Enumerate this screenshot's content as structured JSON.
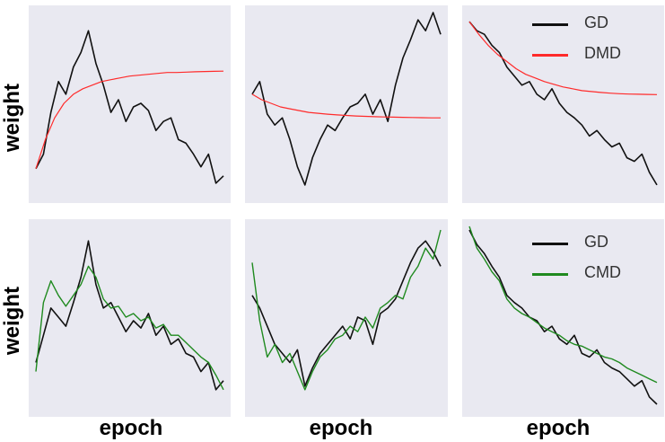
{
  "axis_labels": {
    "y": "weight",
    "x": "epoch"
  },
  "colors": {
    "GD": "#111111",
    "DMD": "#ff2b2b",
    "CMD": "#1f8a1f",
    "panel_bg": "#e9e9f1"
  },
  "legends": {
    "top": [
      {
        "label": "GD",
        "color": "#111111"
      },
      {
        "label": "DMD",
        "color": "#ff2b2b"
      }
    ],
    "bottom": [
      {
        "label": "GD",
        "color": "#111111"
      },
      {
        "label": "CMD",
        "color": "#1f8a1f"
      }
    ]
  },
  "chart_data": [
    {
      "type": "line",
      "panel": "top-left",
      "xlabel": "",
      "ylabel": "weight",
      "xlim": [
        0,
        100
      ],
      "ylim": [
        0,
        100
      ],
      "grid": false,
      "legend": "none",
      "series": [
        {
          "name": "GD",
          "color": "#111111",
          "width": 1.6,
          "x": [
            0,
            4,
            8,
            12,
            16,
            20,
            24,
            28,
            32,
            36,
            40,
            44,
            48,
            52,
            56,
            60,
            64,
            68,
            72,
            76,
            80,
            84,
            88,
            92,
            96,
            100
          ],
          "y": [
            14,
            22,
            45,
            62,
            55,
            70,
            78,
            90,
            72,
            60,
            45,
            52,
            40,
            48,
            50,
            46,
            35,
            40,
            42,
            30,
            28,
            22,
            15,
            22,
            6,
            10
          ]
        },
        {
          "name": "DMD",
          "color": "#ff2b2b",
          "width": 1.2,
          "x": [
            0,
            5,
            10,
            15,
            20,
            25,
            30,
            35,
            40,
            45,
            50,
            55,
            60,
            65,
            70,
            75,
            80,
            85,
            90,
            95,
            100
          ],
          "y": [
            14,
            30,
            42,
            50,
            55,
            58,
            60,
            62,
            63,
            64,
            65,
            65.5,
            66,
            66.5,
            67,
            67,
            67.2,
            67.4,
            67.5,
            67.6,
            67.7
          ]
        }
      ]
    },
    {
      "type": "line",
      "panel": "top-center",
      "xlabel": "",
      "ylabel": "",
      "xlim": [
        0,
        100
      ],
      "ylim": [
        0,
        100
      ],
      "grid": false,
      "legend": "none",
      "series": [
        {
          "name": "GD",
          "color": "#111111",
          "width": 1.6,
          "x": [
            0,
            4,
            8,
            12,
            16,
            20,
            24,
            28,
            32,
            36,
            40,
            44,
            48,
            52,
            56,
            60,
            64,
            68,
            72,
            76,
            80,
            84,
            88,
            92,
            96,
            100
          ],
          "y": [
            55,
            62,
            44,
            38,
            42,
            30,
            15,
            5,
            20,
            30,
            38,
            35,
            42,
            48,
            50,
            55,
            44,
            52,
            40,
            60,
            75,
            85,
            96,
            90,
            100,
            88
          ]
        },
        {
          "name": "DMD",
          "color": "#ff2b2b",
          "width": 1.2,
          "x": [
            0,
            5,
            10,
            15,
            20,
            25,
            30,
            35,
            40,
            45,
            50,
            55,
            60,
            65,
            70,
            75,
            80,
            85,
            90,
            95,
            100
          ],
          "y": [
            55,
            52,
            50,
            48,
            47,
            46,
            45,
            44.5,
            44,
            43.6,
            43.3,
            43,
            42.8,
            42.6,
            42.5,
            42.4,
            42.3,
            42.2,
            42.1,
            42,
            42
          ]
        }
      ]
    },
    {
      "type": "line",
      "panel": "top-right",
      "xlabel": "",
      "ylabel": "",
      "xlim": [
        0,
        100
      ],
      "ylim": [
        0,
        100
      ],
      "grid": false,
      "legend": "top-right",
      "series": [
        {
          "name": "GD",
          "color": "#111111",
          "width": 1.6,
          "x": [
            0,
            4,
            8,
            12,
            16,
            20,
            24,
            28,
            32,
            36,
            40,
            44,
            48,
            52,
            56,
            60,
            64,
            68,
            72,
            76,
            80,
            84,
            88,
            92,
            96,
            100
          ],
          "y": [
            95,
            90,
            88,
            82,
            78,
            70,
            65,
            60,
            62,
            55,
            52,
            58,
            50,
            45,
            42,
            38,
            32,
            35,
            30,
            26,
            28,
            20,
            18,
            22,
            12,
            5
          ]
        },
        {
          "name": "DMD",
          "color": "#ff2b2b",
          "width": 1.2,
          "x": [
            0,
            5,
            10,
            15,
            20,
            25,
            30,
            35,
            40,
            45,
            50,
            55,
            60,
            65,
            70,
            75,
            80,
            85,
            90,
            95,
            100
          ],
          "y": [
            95,
            88,
            82,
            77,
            73,
            69,
            66,
            64,
            62,
            60.5,
            59,
            58,
            57,
            56.5,
            56,
            55.6,
            55.3,
            55.1,
            55,
            54.9,
            54.8
          ]
        }
      ]
    },
    {
      "type": "line",
      "panel": "bottom-left",
      "xlabel": "epoch",
      "ylabel": "weight",
      "xlim": [
        0,
        100
      ],
      "ylim": [
        0,
        100
      ],
      "grid": false,
      "legend": "none",
      "series": [
        {
          "name": "GD",
          "color": "#111111",
          "width": 1.6,
          "x": [
            0,
            4,
            8,
            12,
            16,
            20,
            24,
            28,
            32,
            36,
            40,
            44,
            48,
            52,
            56,
            60,
            64,
            68,
            72,
            76,
            80,
            84,
            88,
            92,
            96,
            100
          ],
          "y": [
            25,
            40,
            55,
            50,
            45,
            58,
            72,
            92,
            68,
            55,
            58,
            50,
            42,
            48,
            44,
            52,
            40,
            45,
            35,
            38,
            30,
            28,
            20,
            25,
            10,
            15
          ]
        },
        {
          "name": "CMD",
          "color": "#1f8a1f",
          "width": 1.4,
          "x": [
            0,
            4,
            8,
            12,
            16,
            20,
            24,
            28,
            32,
            36,
            40,
            44,
            48,
            52,
            56,
            60,
            64,
            68,
            72,
            76,
            80,
            84,
            88,
            92,
            96,
            100
          ],
          "y": [
            20,
            58,
            70,
            62,
            56,
            62,
            68,
            78,
            72,
            60,
            55,
            56,
            50,
            52,
            48,
            50,
            44,
            46,
            40,
            40,
            36,
            32,
            28,
            25,
            18,
            10
          ]
        }
      ]
    },
    {
      "type": "line",
      "panel": "bottom-center",
      "xlabel": "epoch",
      "ylabel": "",
      "xlim": [
        0,
        100
      ],
      "ylim": [
        0,
        100
      ],
      "grid": false,
      "legend": "none",
      "series": [
        {
          "name": "GD",
          "color": "#111111",
          "width": 1.6,
          "x": [
            0,
            4,
            8,
            12,
            16,
            20,
            24,
            28,
            32,
            36,
            40,
            44,
            48,
            52,
            56,
            60,
            64,
            68,
            72,
            76,
            80,
            84,
            88,
            92,
            96,
            100
          ],
          "y": [
            62,
            55,
            45,
            35,
            30,
            25,
            32,
            12,
            22,
            30,
            35,
            40,
            45,
            38,
            50,
            48,
            35,
            52,
            55,
            60,
            70,
            80,
            88,
            92,
            86,
            78
          ]
        },
        {
          "name": "CMD",
          "color": "#1f8a1f",
          "width": 1.4,
          "x": [
            0,
            4,
            8,
            12,
            16,
            20,
            24,
            28,
            32,
            36,
            40,
            44,
            48,
            52,
            56,
            60,
            64,
            68,
            72,
            76,
            80,
            84,
            88,
            92,
            96,
            100
          ],
          "y": [
            80,
            48,
            28,
            35,
            25,
            30,
            20,
            10,
            20,
            28,
            32,
            38,
            40,
            45,
            42,
            50,
            44,
            55,
            58,
            62,
            60,
            72,
            78,
            88,
            82,
            98
          ]
        }
      ]
    },
    {
      "type": "line",
      "panel": "bottom-right",
      "xlabel": "epoch",
      "ylabel": "",
      "xlim": [
        0,
        100
      ],
      "ylim": [
        0,
        100
      ],
      "grid": false,
      "legend": "top-right",
      "series": [
        {
          "name": "GD",
          "color": "#111111",
          "width": 1.6,
          "x": [
            0,
            4,
            8,
            12,
            16,
            20,
            24,
            28,
            32,
            36,
            40,
            44,
            48,
            52,
            56,
            60,
            64,
            68,
            72,
            76,
            80,
            84,
            88,
            92,
            96,
            100
          ],
          "y": [
            98,
            90,
            85,
            78,
            72,
            62,
            58,
            55,
            50,
            48,
            42,
            45,
            38,
            35,
            40,
            30,
            28,
            32,
            25,
            22,
            20,
            16,
            12,
            15,
            6,
            2
          ]
        },
        {
          "name": "CMD",
          "color": "#1f8a1f",
          "width": 1.4,
          "x": [
            0,
            4,
            8,
            12,
            16,
            20,
            24,
            28,
            32,
            36,
            40,
            44,
            48,
            52,
            56,
            60,
            64,
            68,
            72,
            76,
            80,
            84,
            88,
            92,
            96,
            100
          ],
          "y": [
            100,
            88,
            82,
            75,
            70,
            60,
            55,
            52,
            50,
            47,
            44,
            42,
            40,
            37,
            35,
            34,
            32,
            30,
            28,
            27,
            25,
            22,
            20,
            18,
            16,
            14
          ]
        }
      ]
    }
  ]
}
